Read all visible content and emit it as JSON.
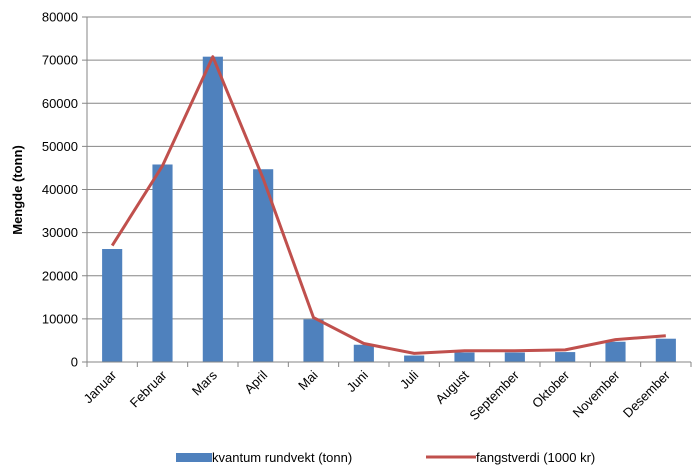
{
  "chart_data": {
    "type": "bar",
    "categories": [
      "Januar",
      "Februar",
      "Mars",
      "April",
      "Mai",
      "Juni",
      "Juli",
      "August",
      "September",
      "Oktober",
      "November",
      "Desember"
    ],
    "ylabel": "Mengde (tonn)",
    "xlabel": "",
    "title": "",
    "ylim": [
      0,
      80000
    ],
    "yticks": [
      0,
      10000,
      20000,
      30000,
      40000,
      50000,
      60000,
      70000,
      80000
    ],
    "grid": true,
    "legend_position": "bottom",
    "series": [
      {
        "name": "kvantum rundvekt (tonn)",
        "type": "bar",
        "color": "#4F81BD",
        "values": [
          26200,
          45800,
          70800,
          44700,
          9900,
          4000,
          1500,
          2200,
          2200,
          2300,
          4700,
          5400
        ]
      },
      {
        "name": "fangstverdi (1000 kr)",
        "type": "line",
        "color": "#C0504D",
        "values": [
          27000,
          45500,
          70800,
          42500,
          10300,
          4300,
          2000,
          2600,
          2600,
          2800,
          5200,
          6100
        ]
      }
    ]
  }
}
